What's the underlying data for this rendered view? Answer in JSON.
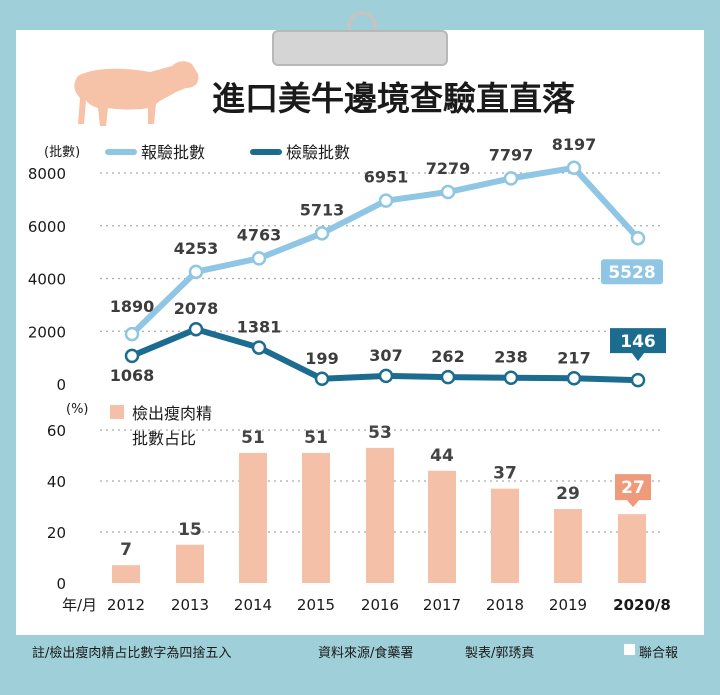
{
  "title": "進口美牛邊境查驗直直落",
  "colors": {
    "reported": "#8ec6e4",
    "inspected": "#1c6c90",
    "bar": "#f5c0a8",
    "bar_last": "#f09a7c",
    "frame": "#9fcfd8",
    "grid": "#aaaaaa",
    "cow": "#f6c3a8"
  },
  "icons": {
    "illustration": "cow-icon",
    "clip": "clipboard-clip-icon"
  },
  "chart_data": [
    {
      "type": "line",
      "ylabel": "(批數)",
      "ylim": [
        0,
        8000
      ],
      "yticks": [
        "0",
        "2000",
        "4000",
        "6000",
        "8000"
      ],
      "x": [
        "2012",
        "2013",
        "2014",
        "2015",
        "2016",
        "2017",
        "2018",
        "2019",
        "2020/8"
      ],
      "series": [
        {
          "name": "報驗批數",
          "values": [
            1890,
            4253,
            4763,
            5713,
            6951,
            7279,
            7797,
            8197,
            5528
          ]
        },
        {
          "name": "檢驗批數",
          "values": [
            1068,
            2078,
            1381,
            199,
            307,
            262,
            238,
            217,
            146
          ]
        }
      ],
      "grid": true,
      "legend": "top-left"
    },
    {
      "type": "bar",
      "ylabel": "(%)",
      "ylim": [
        0,
        60
      ],
      "yticks": [
        "0",
        "20",
        "40",
        "60"
      ],
      "xlabel": "年/月",
      "categories": [
        "2012",
        "2013",
        "2014",
        "2015",
        "2016",
        "2017",
        "2018",
        "2019",
        "2020/8"
      ],
      "series": [
        {
          "name": "檢出瘦肉精批數占比",
          "values": [
            7,
            15,
            51,
            51,
            53,
            44,
            37,
            29,
            27
          ]
        }
      ],
      "legend_lines": [
        "檢出瘦肉精",
        "批數占比"
      ],
      "grid": true,
      "legend": "top-left"
    }
  ],
  "footer": {
    "note": "註/檢出瘦肉精占比數字為四捨五入",
    "source": "資料來源/食藥署",
    "maker": "製表/郭琇真",
    "brand": "聯合報"
  }
}
